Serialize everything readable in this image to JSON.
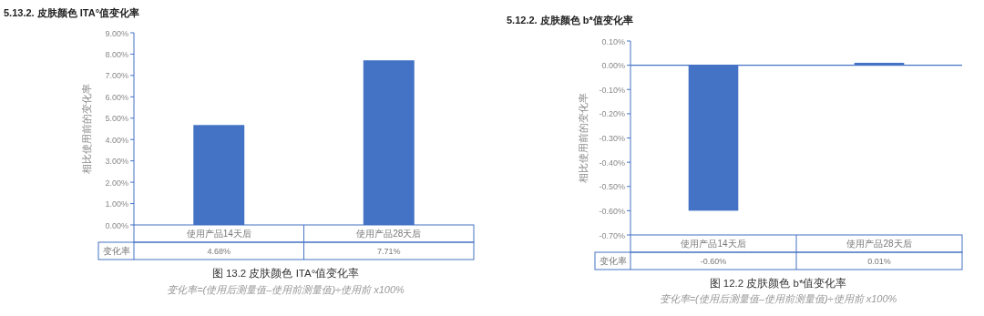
{
  "chart_data": [
    {
      "type": "bar",
      "title": "5.13.2. 皮肤颜色 ITA°值变化率",
      "ylabel": "相比使用前的变化率",
      "categories": [
        "使用产品14天后",
        "使用产品28天后"
      ],
      "values": [
        4.68,
        7.71
      ],
      "color": "#4472c4",
      "ylim": [
        0,
        9
      ],
      "yticks": [
        {
          "value": 0,
          "label": "0.00%"
        },
        {
          "value": 1,
          "label": "1.00%"
        },
        {
          "value": 2,
          "label": "2.00%"
        },
        {
          "value": 3,
          "label": "3.00%"
        },
        {
          "value": 4,
          "label": "4.00%"
        },
        {
          "value": 5,
          "label": "5.00%"
        },
        {
          "value": 6,
          "label": "6.00%"
        },
        {
          "value": 7,
          "label": "7.00%"
        },
        {
          "value": 8,
          "label": "8.00%"
        },
        {
          "value": 9,
          "label": "9.00%"
        }
      ],
      "value_labels": [
        "4.68%",
        "7.71%"
      ],
      "annotations": [
        "变化率",
        "图 13.2 皮肤颜色 ITA°值变化率",
        "变化率=(使用后测量值–使用前测量值)÷使用前 x100%"
      ]
    },
    {
      "type": "bar",
      "title": "5.12.2. 皮肤颜色 b*值变化率",
      "ylabel": "相比使用前的变化率",
      "categories": [
        "使用产品14天后",
        "使用产品28天后"
      ],
      "values": [
        -0.6,
        0.01
      ],
      "color": "#4472c4",
      "ylim": [
        -0.7,
        0.1
      ],
      "yticks": [
        {
          "value": 0.1,
          "label": "0.10%"
        },
        {
          "value": 0,
          "label": "0.00%"
        },
        {
          "value": -0.1,
          "label": "-0.10%"
        },
        {
          "value": -0.2,
          "label": "-0.20%"
        },
        {
          "value": -0.3,
          "label": "-0.30%"
        },
        {
          "value": -0.4,
          "label": "-0.40%"
        },
        {
          "value": -0.5,
          "label": "-0.50%"
        },
        {
          "value": -0.6,
          "label": "-0.60%"
        },
        {
          "value": -0.7,
          "label": "-0.70%"
        }
      ],
      "value_labels": [
        "-0.60%",
        "0.01%"
      ],
      "ref_lines": [
        {
          "axis": "y",
          "value": 0,
          "color": "#4472c4"
        }
      ],
      "annotations": [
        "变化率",
        "图 12.2 皮肤颜色 b*值变化率",
        "变化率=(使用后测量值–使用前测量值)÷使用前 x100%"
      ]
    }
  ]
}
